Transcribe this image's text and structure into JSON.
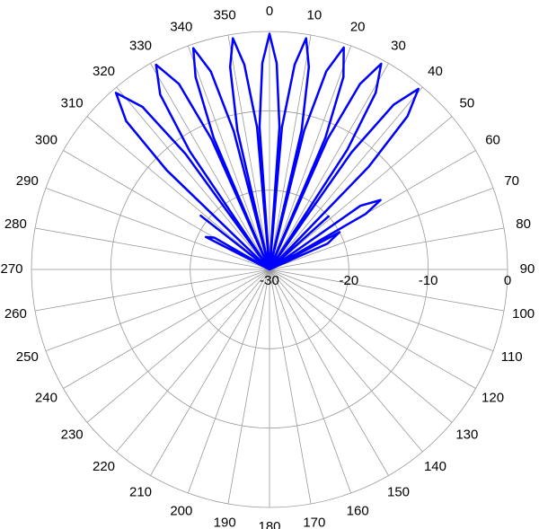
{
  "chart_data": {
    "type": "polar",
    "theta_zero": "N",
    "theta_direction": "clockwise",
    "rlim": [
      -30,
      0
    ],
    "rticks": [
      -30,
      -20,
      -10,
      0
    ],
    "theta_ticks": [
      0,
      10,
      20,
      30,
      40,
      50,
      60,
      70,
      80,
      90,
      100,
      110,
      120,
      130,
      140,
      150,
      160,
      170,
      180,
      190,
      200,
      210,
      220,
      230,
      240,
      250,
      260,
      270,
      280,
      290,
      300,
      310,
      320,
      330,
      340,
      350
    ],
    "grid": true,
    "series": [
      {
        "color": "#0000ff",
        "theta": [
          295,
          297,
          300,
          303,
          305,
          308,
          311,
          314,
          316,
          319,
          322,
          324,
          325,
          326,
          328,
          331,
          334,
          336,
          337,
          337,
          339,
          341,
          343.5,
          345.5,
          346,
          347,
          349,
          351,
          353,
          355,
          355.5,
          356,
          358,
          0,
          2,
          4,
          4.5,
          5,
          7,
          9,
          11,
          13,
          13.5,
          14,
          16,
          18.5,
          21,
          23,
          23.5,
          24,
          26,
          28.5,
          31,
          33,
          34,
          35,
          37,
          39.5,
          42,
          44,
          45,
          48,
          51,
          55,
          58,
          60,
          57,
          62,
          66,
          68
        ],
        "r": [
          -30,
          -21,
          -22,
          -30,
          -30,
          -19,
          -30,
          -12,
          -4,
          -0.5,
          -4,
          -12,
          -30,
          -12,
          -4,
          -0.5,
          -4,
          -12,
          -30,
          -12,
          -4,
          -0.5,
          -4,
          -12,
          -30,
          -12,
          -4,
          -0.5,
          -4,
          -12,
          -30,
          -12,
          -4,
          -0.3,
          -4,
          -12,
          -30,
          -12,
          -4,
          -0.5,
          -4,
          -12,
          -30,
          -12,
          -4,
          -0.5,
          -4,
          -12,
          -30,
          -12,
          -4,
          -0.5,
          -4,
          -12,
          -30,
          -12,
          -4,
          -0.5,
          -4,
          -12,
          -30,
          -20,
          -30,
          -16,
          -13.5,
          -16,
          -30,
          -20,
          -22,
          -30
        ]
      }
    ]
  }
}
